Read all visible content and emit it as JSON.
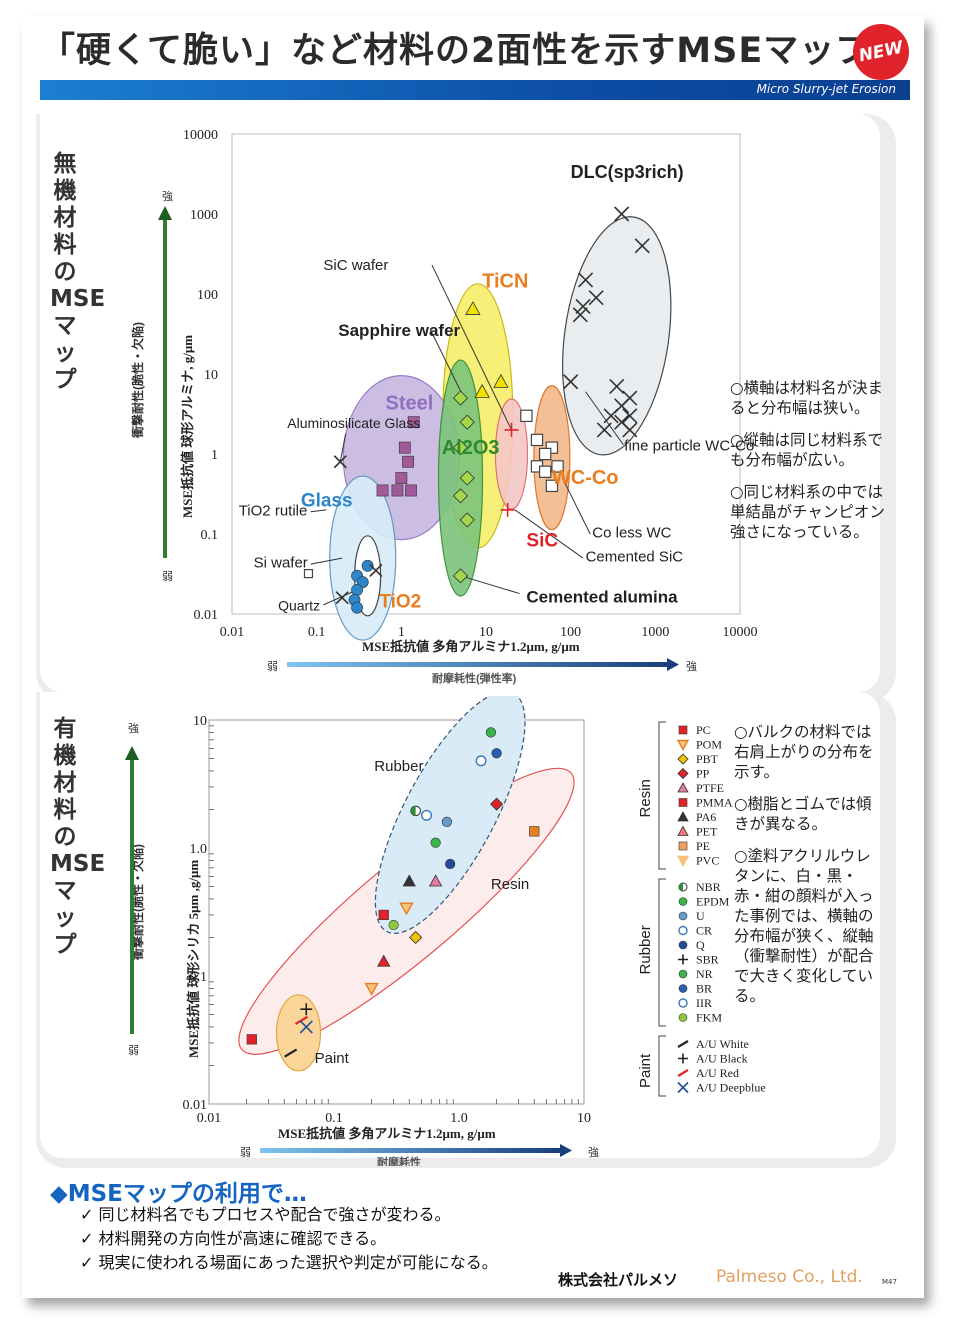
{
  "header": {
    "title": "「硬くて脆い」など材料の2面性を示すMSEマップ",
    "badge": "NEW",
    "subtitle": "Micro Slurry-jet Erosion"
  },
  "section_inorganic": {
    "side_title": "無機材料のMSEマップ",
    "notes": [
      "○横軸は材料名が決まると分布幅は狭い。",
      "○縦軸は同じ材料系でも分布幅が広い。",
      "○同じ材料系の中では単結晶がチャンピオン強さになっている。"
    ]
  },
  "section_organic": {
    "side_title": "有機材料のMSEマップ",
    "notes": [
      "○バルクの材料では右肩上がりの分布を示す。",
      "○樹脂とゴムでは傾きが異なる。",
      "○塗料アクリルウレタンに、白・黒・赤・紺の顔料が入った事例では、横軸の分布幅が狭く、縦軸（衝撃耐性）が配合で大きく変化している。"
    ]
  },
  "footer": {
    "heading": "◆MSEマップの利用で…",
    "bullets": [
      "✓ 同じ材料名でもプロセスや配合で強さが変わる。",
      "✓ 材料開発の方向性が高速に確認できる。",
      "✓ 現実に使われる場面にあった選択や判定が可能になる。"
    ],
    "company_jp": "株式会社パルメソ",
    "company_en": "Palmeso Co., Ltd.",
    "doc_no": "M47"
  },
  "colors": {
    "accent_blue": "#1565c0",
    "badge_red": "#e0232a",
    "brand_orange": "#e0a060"
  },
  "chart_data": [
    {
      "type": "scatter",
      "log_x": true,
      "log_y": true,
      "xlim": [
        0.01,
        10000
      ],
      "ylim": [
        0.01,
        10000
      ],
      "x_ticks": [
        "0.01",
        "0.1",
        "1",
        "10",
        "100",
        "1000",
        "10000"
      ],
      "y_ticks": [
        "0.01",
        "0.1",
        "1",
        "10",
        "100",
        "1000",
        "10000"
      ],
      "xlabel": "MSE抵抗値 多角アルミナ1.2μm, g/μm",
      "ylabel": "MSE抵抗値 球形アルミナ, g/μm",
      "y_side_label": "衝撃耐性(脆性・欠陥)",
      "x_arrow_label": "耐摩耗性(弾性率)",
      "weak": "弱",
      "strong": "強",
      "groups": [
        {
          "name": "DLC(sp3rich)",
          "color": "#d46a1e",
          "points": [
            [
              400,
              1000
            ],
            [
              700,
              400
            ],
            [
              150,
              150
            ],
            [
              200,
              90
            ],
            [
              130,
              55
            ],
            [
              140,
              70
            ],
            [
              100,
              8
            ],
            [
              350,
              7
            ],
            [
              500,
              5
            ],
            [
              400,
              4
            ],
            [
              300,
              3
            ],
            [
              500,
              3
            ],
            [
              400,
              2.5
            ],
            [
              250,
              2
            ],
            [
              500,
              2
            ]
          ]
        },
        {
          "name": "TiCN",
          "color": "#e67e22",
          "points": [
            [
              7,
              65
            ],
            [
              15,
              8
            ],
            [
              9,
              6
            ]
          ]
        },
        {
          "name": "Steel",
          "color": "#8e6fc0",
          "points": [
            [
              1.4,
              2.5
            ],
            [
              1.1,
              1.2
            ],
            [
              1.2,
              0.8
            ],
            [
              1.0,
              0.5
            ],
            [
              0.6,
              0.35
            ],
            [
              0.9,
              0.35
            ],
            [
              1.3,
              0.35
            ]
          ]
        },
        {
          "name": "Al2O3",
          "color": "#3a9d3a",
          "points": [
            [
              5,
              5
            ],
            [
              6,
              2.5
            ],
            [
              5,
              1.2
            ],
            [
              6,
              0.5
            ],
            [
              5,
              0.3
            ],
            [
              6,
              0.15
            ],
            [
              5,
              0.03
            ]
          ]
        },
        {
          "name": "Glass",
          "color": "#2d86c9",
          "points": [
            [
              0.4,
              0.04
            ],
            [
              0.3,
              0.03
            ],
            [
              0.35,
              0.025
            ],
            [
              0.3,
              0.02
            ],
            [
              0.28,
              0.015
            ],
            [
              0.3,
              0.012
            ]
          ]
        },
        {
          "name": "WC-Co",
          "color": "#e67e22",
          "points": [
            [
              30,
              3
            ],
            [
              40,
              1.5
            ],
            [
              60,
              1.2
            ],
            [
              50,
              1.0
            ],
            [
              70,
              0.7
            ],
            [
              40,
              0.7
            ],
            [
              50,
              0.6
            ],
            [
              60,
              0.4
            ]
          ]
        },
        {
          "name": "SiC",
          "color": "#e0232a",
          "points": [
            [
              20,
              2
            ],
            [
              18,
              0.2
            ]
          ]
        }
      ],
      "labels": [
        "DLC(sp3rich)",
        "SiC wafer",
        "TiCN",
        "Sapphire wafer",
        "Steel",
        "Al2O3",
        "Aluminosilicate Glass",
        "fine particle WC-Co",
        "WC-Co",
        "TiO2 rutile",
        "Glass",
        "Co less WC",
        "SiC",
        "Cemented SiC",
        "Si wafer",
        "TiO2",
        "Cemented alumina",
        "Quartz"
      ]
    },
    {
      "type": "scatter",
      "log_x": true,
      "log_y": true,
      "xlim": [
        0.01,
        10
      ],
      "ylim": [
        0.01,
        10
      ],
      "x_ticks": [
        "0.01",
        "0.1",
        "1.0",
        "10"
      ],
      "y_ticks": [
        "0.01",
        "0.1",
        "1.0",
        "10"
      ],
      "xlabel": "MSE抵抗値 多角アルミナ1.2μm, g/μm",
      "ylabel": "MSE抵抗値 球形シリカ 5μm ,g/μm",
      "y_side_label": "衝撃耐性(脆性・欠陥)",
      "x_arrow_label": "耐摩耗性",
      "weak": "弱",
      "strong": "強",
      "group_labels": [
        "Rubber",
        "Resin",
        "Paint"
      ],
      "legend_groups": [
        "Resin",
        "Rubber",
        "Paint"
      ],
      "legend": {
        "Resin": [
          "PC",
          "POM",
          "PBT",
          "PP",
          "PTFE",
          "PMMA",
          "PA6",
          "PET",
          "PE",
          "PVC"
        ],
        "Rubber": [
          "NBR",
          "EPDM",
          "U",
          "CR",
          "Q",
          "SBR",
          "NR",
          "BR",
          "IIR",
          "FKM"
        ],
        "Paint": [
          "A/U White",
          "A/U Black",
          "A/U Red",
          "A/U Deepblue"
        ]
      },
      "series": [
        {
          "name": "PC",
          "marker": "square",
          "color": "#e0232a",
          "points": [
            [
              0.022,
              0.032
            ],
            [
              0.25,
              0.3
            ]
          ]
        },
        {
          "name": "POM",
          "marker": "tri-down",
          "color": "#e67e22",
          "points": [
            [
              0.2,
              0.08
            ]
          ]
        },
        {
          "name": "PBT",
          "marker": "diamond",
          "color": "#f2c200",
          "points": [
            [
              0.45,
              0.2
            ]
          ]
        },
        {
          "name": "PP",
          "marker": "diamond",
          "color": "#e0232a",
          "points": [
            [
              2.0,
              2.2
            ]
          ]
        },
        {
          "name": "PTFE",
          "marker": "triangle",
          "color": "#e57aa0",
          "points": [
            [
              0.65,
              0.55
            ]
          ]
        },
        {
          "name": "PMMA",
          "marker": "triangle",
          "color": "#e0232a",
          "points": [
            [
              0.25,
              0.13
            ]
          ]
        },
        {
          "name": "PA6",
          "marker": "triangle",
          "color": "#333333",
          "points": [
            [
              0.4,
              0.55
            ]
          ]
        },
        {
          "name": "POM2",
          "marker": "tri-down",
          "color": "#e67e22",
          "points": [
            [
              0.38,
              0.34
            ]
          ]
        },
        {
          "name": "PVC",
          "marker": "square",
          "color": "#e67e22",
          "points": [
            [
              4.0,
              1.35
            ]
          ]
        },
        {
          "name": "NBR",
          "marker": "circle-half",
          "color": "#2f8f3f",
          "points": [
            [
              0.45,
              1.95
            ]
          ]
        },
        {
          "name": "EPDM",
          "marker": "circle",
          "color": "#3bb54a",
          "points": [
            [
              1.8,
              8.0
            ],
            [
              0.65,
              1.1
            ]
          ]
        },
        {
          "name": "U",
          "marker": "circle",
          "color": "#6699cc",
          "points": [
            [
              0.8,
              1.6
            ]
          ]
        },
        {
          "name": "CR",
          "marker": "circle-open",
          "color": "#3a78c0",
          "points": [
            [
              1.5,
              4.8
            ],
            [
              0.55,
              1.8
            ]
          ]
        },
        {
          "name": "Q",
          "marker": "circle",
          "color": "#1f4d99",
          "points": [
            [
              0.85,
              0.75
            ]
          ]
        },
        {
          "name": "BR",
          "marker": "circle",
          "color": "#2b5fb0",
          "points": [
            [
              2.0,
              5.5
            ]
          ]
        },
        {
          "name": "FKM",
          "marker": "circle",
          "color": "#8dc63f",
          "points": [
            [
              0.3,
              0.25
            ]
          ]
        },
        {
          "name": "A/U White",
          "marker": "slash",
          "color": "#222222",
          "points": [
            [
              0.045,
              0.025
            ]
          ]
        },
        {
          "name": "A/U Black",
          "marker": "plus",
          "color": "#222222",
          "points": [
            [
              0.06,
              0.055
            ]
          ]
        },
        {
          "name": "A/U Red",
          "marker": "slash",
          "color": "#e0232a",
          "points": [
            [
              0.055,
              0.045
            ]
          ]
        },
        {
          "name": "A/U Deepblue",
          "marker": "x",
          "color": "#1f4d99",
          "points": [
            [
              0.06,
              0.04
            ]
          ]
        }
      ]
    }
  ]
}
